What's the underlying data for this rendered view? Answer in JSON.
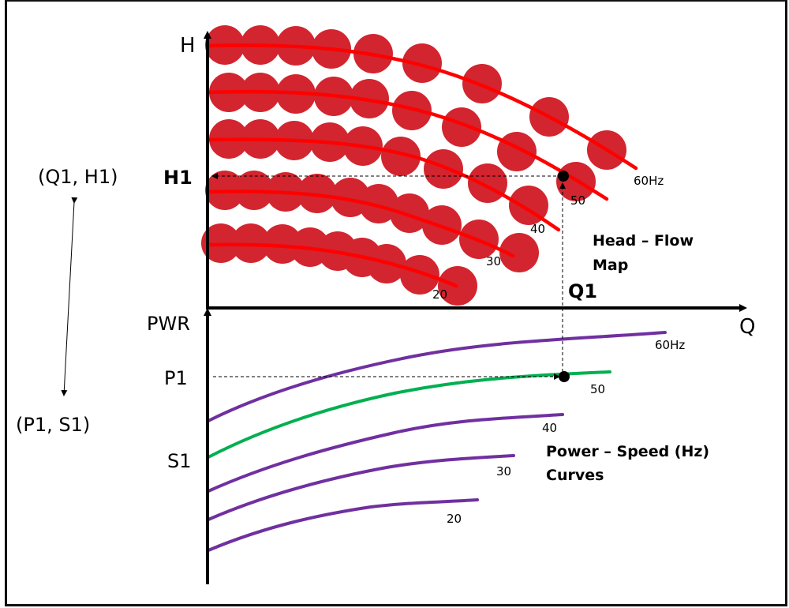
{
  "colors": {
    "flow_dot": "#d2252f",
    "flow_curve": "#ff0000",
    "power_curve": "#7030a0",
    "highlight_curve": "#00b050",
    "point_label": "#1a1acc",
    "axis": "#000000"
  },
  "labels": {
    "h_axis": "H",
    "q_axis": "Q",
    "pwr_axis": "PWR",
    "h1": "H1",
    "q1": "Q1",
    "p1": "P1",
    "s1": "S1",
    "qh_pair": "(Q1, H1)",
    "ps_pair": "(P1, S1)",
    "head_flow_title_1": "Head – Flow",
    "head_flow_title_2": "Map",
    "power_speed_title_1": "Power – Speed (Hz)",
    "power_speed_title_2": "Curves"
  },
  "chart_data": [
    {
      "type": "line",
      "title": "Head – Flow Map",
      "xlabel": "Q",
      "ylabel": "H",
      "grid": false,
      "series": [
        {
          "name": "60Hz",
          "label": "60Hz"
        },
        {
          "name": "50",
          "label": "50"
        },
        {
          "name": "40",
          "label": "40"
        },
        {
          "name": "30",
          "label": "30"
        },
        {
          "name": "20",
          "label": "20"
        }
      ],
      "operating_point": {
        "x_label": "Q1",
        "y_label": "H1",
        "on_series": "50"
      }
    },
    {
      "type": "line",
      "title": "Power – Speed (Hz) Curves",
      "xlabel": "",
      "ylabel": "PWR",
      "grid": false,
      "series": [
        {
          "name": "60Hz",
          "label": "60Hz",
          "highlight": false
        },
        {
          "name": "50",
          "label": "50",
          "highlight": true
        },
        {
          "name": "40",
          "label": "40",
          "highlight": false
        },
        {
          "name": "30",
          "label": "30",
          "highlight": false
        },
        {
          "name": "20",
          "label": "20",
          "highlight": false
        }
      ],
      "operating_point": {
        "y_label": "P1",
        "speed_label": "S1",
        "on_series": "50"
      }
    }
  ]
}
